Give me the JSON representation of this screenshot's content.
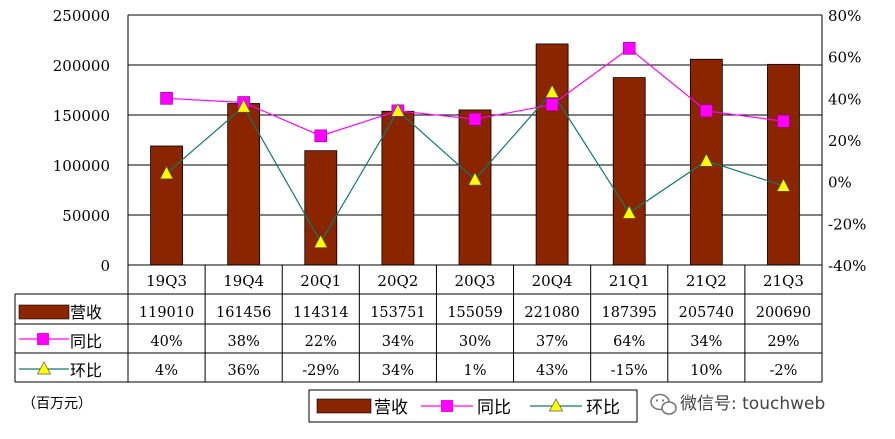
{
  "chart_data": {
    "type": "bar",
    "categories": [
      "19Q3",
      "19Q4",
      "20Q1",
      "20Q2",
      "20Q3",
      "20Q4",
      "21Q1",
      "21Q2",
      "21Q3"
    ],
    "series": [
      {
        "name": "营收",
        "type": "bar",
        "axis": "left",
        "color": "#8B2500",
        "values": [
          119010,
          161456,
          114314,
          153751,
          155059,
          221080,
          187395,
          205740,
          200690
        ],
        "labels": [
          "119010",
          "161456",
          "114314",
          "153751",
          "155059",
          "221080",
          "187395",
          "205740",
          "200690"
        ]
      },
      {
        "name": "同比",
        "type": "line",
        "axis": "right",
        "color": "#FF00FF",
        "marker": "square",
        "values": [
          40,
          38,
          22,
          34,
          30,
          37,
          64,
          34,
          29
        ],
        "labels": [
          "40%",
          "38%",
          "22%",
          "34%",
          "30%",
          "37%",
          "64%",
          "34%",
          "29%"
        ]
      },
      {
        "name": "环比",
        "type": "line",
        "axis": "right",
        "color": "#0E7A6E",
        "marker": "triangle",
        "values": [
          4,
          36,
          -29,
          34,
          1,
          43,
          -15,
          10,
          -2
        ],
        "labels": [
          "4%",
          "36%",
          "-29%",
          "34%",
          "1%",
          "43%",
          "-15%",
          "10%",
          "-2%"
        ]
      }
    ],
    "ylim_left": [
      0,
      250000
    ],
    "yticks_left": [
      "0",
      "50000",
      "100000",
      "150000",
      "200000",
      "250000"
    ],
    "ylim_right": [
      -40,
      80
    ],
    "yticks_right": [
      "-40%",
      "-20%",
      "0%",
      "20%",
      "40%",
      "60%",
      "80%"
    ],
    "grid": true,
    "unit_label": "（百万元）",
    "legend_position": "bottom"
  },
  "watermark": "微信号: touchweb",
  "colors": {
    "bar": "#8B2500",
    "yoy": "#FF00FF",
    "qoq": "#0E7A6E",
    "qoq_marker": "#FFFF00"
  }
}
